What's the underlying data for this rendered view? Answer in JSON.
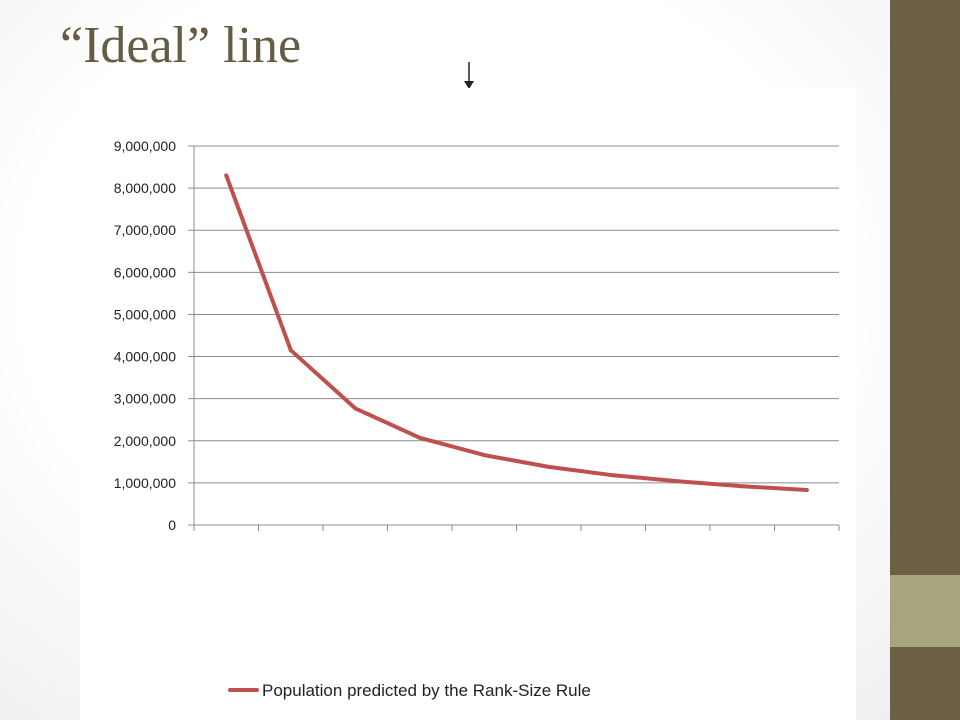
{
  "slide": {
    "title": "“Ideal” line",
    "colors": {
      "sidebar_dark": "#6b5f45",
      "sidebar_light": "#a8a47e",
      "title": "#655c44"
    },
    "annotation_icon": "down-arrow-icon"
  },
  "chart_data": {
    "type": "line",
    "title": "",
    "xlabel": "",
    "ylabel": "",
    "x": [
      1,
      2,
      3,
      4,
      5,
      6,
      7,
      8,
      9,
      10
    ],
    "series": [
      {
        "name": "Population predicted by the Rank-Size Rule",
        "color": "#c0504d",
        "values": [
          8300000,
          4150000,
          2770000,
          2070000,
          1660000,
          1380000,
          1180000,
          1040000,
          920000,
          830000
        ]
      }
    ],
    "ylim": [
      0,
      9000000
    ],
    "yticks": [
      "0",
      "1,000,000",
      "2,000,000",
      "3,000,000",
      "4,000,000",
      "5,000,000",
      "6,000,000",
      "7,000,000",
      "8,000,000",
      "9,000,000"
    ],
    "grid": true,
    "legend": "bottom"
  }
}
